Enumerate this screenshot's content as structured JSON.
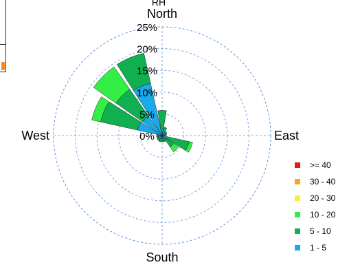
{
  "chart_data": {
    "type": "windrose",
    "title": "RH",
    "directions": {
      "north": "North",
      "east": "East",
      "south": "South",
      "west": "West"
    },
    "radial_ticks": [
      "0%",
      "5%",
      "10%",
      "15%",
      "20%",
      "25%"
    ],
    "radial_max": 25,
    "bins": [
      {
        "label": ">= 40",
        "color": "#e41a1c"
      },
      {
        "label": "30 - 40",
        "color": "#f5a623"
      },
      {
        "label": "20 - 30",
        "color": "#ffee33"
      },
      {
        "label": "10 - 20",
        "color": "#33ee44"
      },
      {
        "label": "5 - 10",
        "color": "#10b050"
      },
      {
        "label": "1 - 5",
        "color": "#18aaea"
      }
    ],
    "petal_half_width_deg": 10,
    "petals": [
      {
        "direction_deg": 0,
        "values": {
          "1 - 5": 0.8,
          "5 - 10": 5.0,
          "10 - 20": 0.0
        }
      },
      {
        "direction_deg": 22.5,
        "values": {
          "1 - 5": 1.6,
          "5 - 10": 0.4,
          "10 - 20": 0.0
        }
      },
      {
        "direction_deg": 45,
        "values": {
          "1 - 5": 0.9,
          "5 - 10": 0.4,
          "10 - 20": 0.0
        }
      },
      {
        "direction_deg": 67.5,
        "values": {
          "1 - 5": 0.8,
          "5 - 10": 0.3,
          "10 - 20": 0.0
        }
      },
      {
        "direction_deg": 90,
        "values": {
          "1 - 5": 0.6,
          "5 - 10": 0.3,
          "10 - 20": 0.0
        }
      },
      {
        "direction_deg": 112.5,
        "values": {
          "1 - 5": 1.2,
          "5 - 10": 5.2,
          "10 - 20": 0.8
        }
      },
      {
        "direction_deg": 135,
        "values": {
          "1 - 5": 1.0,
          "5 - 10": 2.2,
          "10 - 20": 1.4
        }
      },
      {
        "direction_deg": 157.5,
        "values": {
          "1 - 5": 0.6,
          "5 - 10": 0.7,
          "10 - 20": 0.2
        }
      },
      {
        "direction_deg": 180,
        "values": {
          "1 - 5": 0.7,
          "5 - 10": 0.7,
          "10 - 20": 0.0
        }
      },
      {
        "direction_deg": 202.5,
        "values": {
          "1 - 5": 0.8,
          "5 - 10": 0.7,
          "10 - 20": 0.0
        }
      },
      {
        "direction_deg": 225,
        "values": {
          "1 - 5": 0.9,
          "5 - 10": 0.5,
          "10 - 20": 0.0
        }
      },
      {
        "direction_deg": 247.5,
        "values": {
          "1 - 5": 0.9,
          "5 - 10": 0.4,
          "10 - 20": 0.0
        }
      },
      {
        "direction_deg": 270,
        "values": {
          "1 - 5": 0.9,
          "5 - 10": 0.4,
          "10 - 20": 0.0
        }
      },
      {
        "direction_deg": 292.5,
        "values": {
          "1 - 5": 5.8,
          "5 - 10": 8.7,
          "10 - 20": 2.1
        }
      },
      {
        "direction_deg": 315,
        "values": {
          "1 - 5": 5.5,
          "5 - 10": 7.5,
          "10 - 20": 6.3
        }
      },
      {
        "direction_deg": 337.5,
        "values": {
          "1 - 5": 12.3,
          "5 - 10": 7.1,
          "10 - 20": 0.0
        }
      }
    ]
  }
}
